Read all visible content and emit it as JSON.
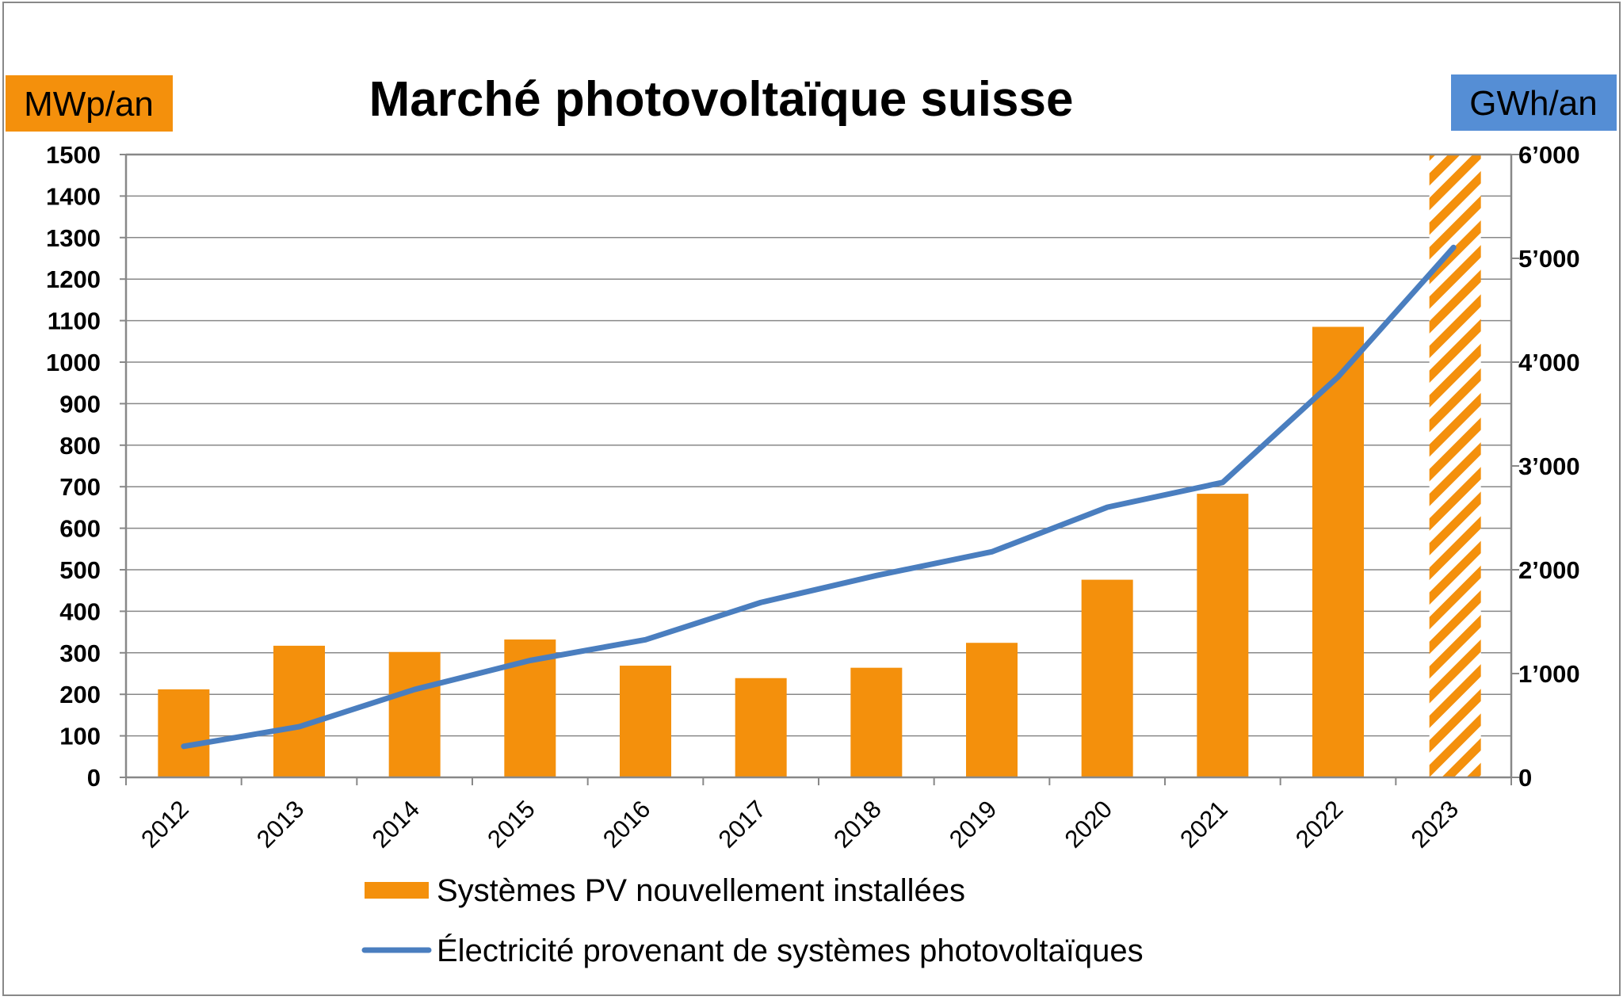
{
  "chart_data": {
    "type": "bar+line",
    "title": "Marché photovoltaïque suisse",
    "y_left_label": "MWp/an",
    "y_right_label": "GWh/an",
    "categories": [
      "2012",
      "2013",
      "2014",
      "2015",
      "2016",
      "2017",
      "2018",
      "2019",
      "2020",
      "2021",
      "2022",
      "2023"
    ],
    "y_left_ticks": [
      "0",
      "100",
      "200",
      "300",
      "400",
      "500",
      "600",
      "700",
      "800",
      "900",
      "1000",
      "1100",
      "1200",
      "1300",
      "1400",
      "1500"
    ],
    "y_right_ticks": [
      "0",
      "1’000",
      "2’000",
      "3’000",
      "4’000",
      "5’000",
      "6’000"
    ],
    "ylim_left": [
      0,
      1500
    ],
    "ylim_right": [
      0,
      6000
    ],
    "grid": true,
    "legend_position": "bottom",
    "series": [
      {
        "name": "Systèmes PV nouvellement installées",
        "type": "bar",
        "axis": "left",
        "color": "#F4900C",
        "values": [
          212,
          317,
          302,
          332,
          269,
          239,
          264,
          324,
          476,
          683,
          1085,
          null
        ],
        "hatched_projection": {
          "category": "2023",
          "extends_to": 1500
        }
      },
      {
        "name": "Électricité provenant de systèmes photovoltaïques",
        "type": "line",
        "axis": "right",
        "color": "#4A7EBF",
        "values": [
          299,
          488,
          847,
          1126,
          1326,
          1685,
          1944,
          2173,
          2602,
          2841,
          3858,
          5105
        ]
      }
    ],
    "colors": {
      "left_label_bg": "#F4900C",
      "right_label_bg": "#558ED5"
    }
  }
}
